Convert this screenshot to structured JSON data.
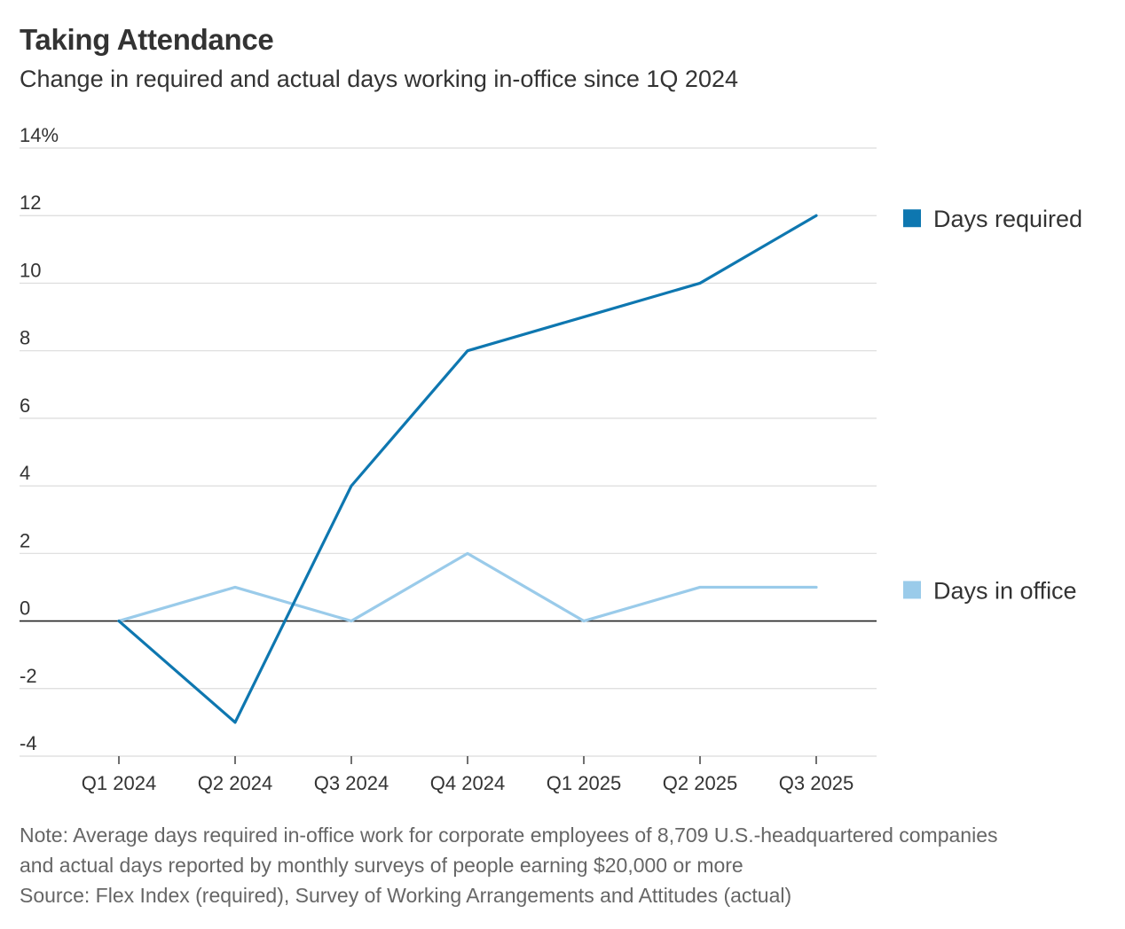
{
  "title": "Taking Attendance",
  "subtitle": "Change in required and actual days working in-office since 1Q 2024",
  "note_line1": "Note: Average days required in-office work for corporate employees of 8,709 U.S.-headquartered companies",
  "note_line2": "and actual days reported by monthly surveys of people earning $20,000 or more",
  "source": "Source: Flex Index (required), Survey of Working Arrangements and Attitudes (actual)",
  "chart_data": {
    "type": "line",
    "categories": [
      "Q1 2024",
      "Q2 2024",
      "Q3 2024",
      "Q4 2024",
      "Q1 2025",
      "Q2 2025",
      "Q3 2025"
    ],
    "ylim": [
      -4,
      14
    ],
    "yticks": [
      14,
      12,
      10,
      8,
      6,
      4,
      2,
      0,
      -2,
      -4
    ],
    "ytick_labels": [
      "14%",
      "12",
      "10",
      "8",
      "6",
      "4",
      "2",
      "0",
      "-2",
      "-4"
    ],
    "grid": true,
    "legend": "right, labels at line ends",
    "series": [
      {
        "name": "Days required",
        "color": "#0e77b0",
        "values": [
          0,
          -3,
          4,
          8,
          9,
          10,
          12
        ]
      },
      {
        "name": "Days in office",
        "color": "#9acbea",
        "values": [
          0,
          1,
          0,
          2,
          0,
          1,
          1
        ]
      }
    ]
  }
}
